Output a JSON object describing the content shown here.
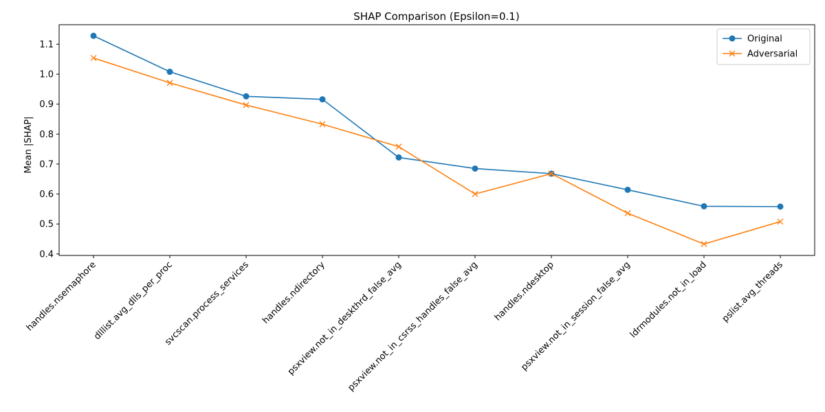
{
  "chart_data": {
    "type": "line",
    "title": "SHAP Comparison (Epsilon=0.1)",
    "xlabel": "",
    "ylabel": "Mean |SHAP|",
    "categories": [
      "handles.nsemaphore",
      "dlllist.avg_dlls_per_proc",
      "svcscan.process_services",
      "handles.ndirectory",
      "psxview.not_in_deskthrd_false_avg",
      "psxview.not_in_csrss_handles_false_avg",
      "handles.ndesktop",
      "psxview.not_in_session_false_avg",
      "ldrmodules.not_in_load",
      "pslist.avg_threads"
    ],
    "series": [
      {
        "name": "Original",
        "color": "#1f77b4",
        "marker": "circle",
        "values": [
          1.128,
          1.008,
          0.926,
          0.916,
          0.722,
          0.685,
          0.668,
          0.614,
          0.559,
          0.558
        ]
      },
      {
        "name": "Adversarial",
        "color": "#ff7f0e",
        "marker": "x",
        "values": [
          1.054,
          0.971,
          0.897,
          0.833,
          0.758,
          0.6,
          0.668,
          0.536,
          0.433,
          0.508
        ]
      }
    ],
    "ylim": [
      0.395,
      1.165
    ],
    "yticks": [
      0.4,
      0.5,
      0.6,
      0.7,
      0.8,
      0.9,
      1.0,
      1.1
    ],
    "grid": false,
    "legend_position": "top-right"
  }
}
